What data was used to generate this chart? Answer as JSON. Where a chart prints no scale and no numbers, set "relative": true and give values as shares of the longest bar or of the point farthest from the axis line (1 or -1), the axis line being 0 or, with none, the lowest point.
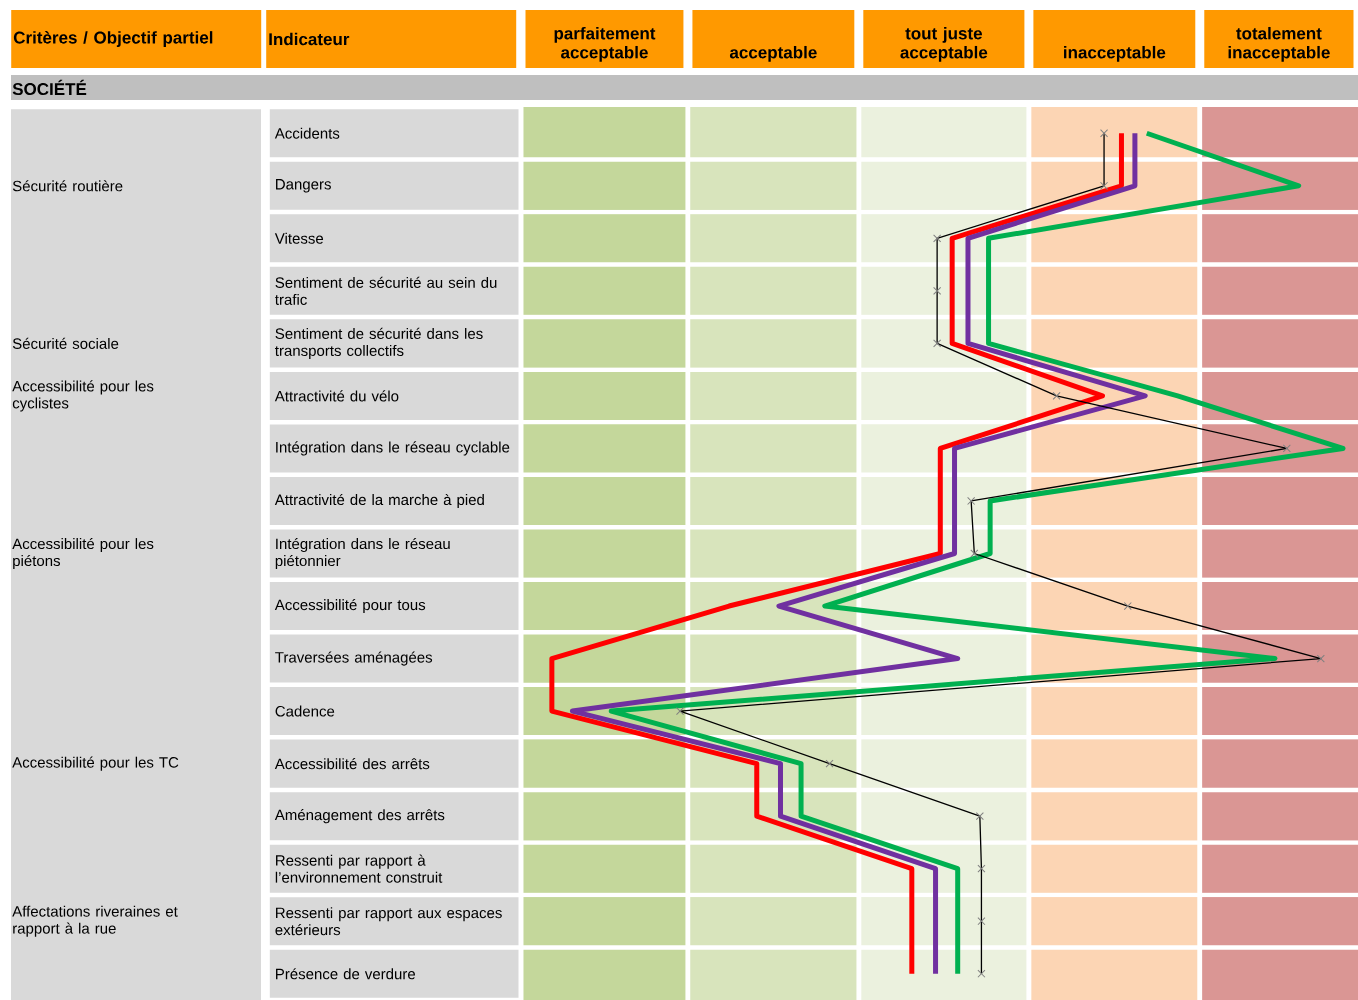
{
  "chart_data": {
    "type": "line",
    "orientation": "horizontal",
    "title": "SOCIÉTÉ",
    "annotations": [
      "Critères / Objectif partiel",
      "Indicateur"
    ],
    "categories": [
      "Accidents",
      "Dangers",
      "Vitesse",
      "Sentiment de sécurité au sein du trafic",
      "Sentiment de sécurité dans les transports collectifs",
      "Attractivité du vélo",
      "Intégration dans le réseau cyclable",
      "Attractivité de la marche à pied",
      "Intégration dans le réseau piétonnier",
      "Accessibilité pour tous",
      "Traversées aménagées",
      "Cadence",
      "Accessibilité des arrêts",
      "Aménagement des arrêts",
      "Ressenti par rapport à l’environnement construit",
      "Ressenti par rapport aux espaces extérieurs",
      "Présence de verdure"
    ],
    "y2_categories": [
      null,
      "Sécurité routière",
      null,
      null,
      "Sécurité sociale",
      "Accessibilité pour les cyclistes",
      null,
      null,
      "Accessibilité pour les piétons",
      null,
      null,
      null,
      "Accessibilité pour les TC",
      null,
      null,
      "Affectations riveraines et rapport à la rue",
      null
    ],
    "relative": true,
    "bands": [
      {
        "axis": "x",
        "from": -0.039,
        "to": 0.172,
        "label": "parfaitement acceptable",
        "color": "#c4d79b"
      },
      {
        "axis": "x",
        "from": 0.172,
        "to": 0.388,
        "label": "acceptable",
        "color": "#d8e4bc"
      },
      {
        "axis": "x",
        "from": 0.388,
        "to": 0.603,
        "label": "tout juste acceptable",
        "color": "#ebf1de"
      },
      {
        "axis": "x",
        "from": 0.603,
        "to": 0.819,
        "label": "inacceptable",
        "color": "#fcd5b4"
      },
      {
        "axis": "x",
        "from": 0.819,
        "to": 1.019,
        "label": "totalement inacceptable",
        "color": "#da9694"
      }
    ],
    "series": [
      {
        "color": "#ff0000",
        "values": [
          0.72,
          0.72,
          0.506,
          0.506,
          0.506,
          0.696,
          0.491,
          0.491,
          0.491,
          0.224,
          0,
          0,
          0.259,
          0.259,
          0.455,
          0.455,
          0.455
        ]
      },
      {
        "color": "#7030a0",
        "values": [
          0.737,
          0.737,
          0.526,
          0.526,
          0.526,
          0.75,
          0.509,
          0.509,
          0.509,
          0.287,
          0.513,
          0.026,
          0.289,
          0.289,
          0.485,
          0.485,
          0.485
        ]
      },
      {
        "color": "#00b050",
        "values": [
          0.752,
          0.944,
          0.552,
          0.552,
          0.552,
          0.791,
          1.0,
          0.554,
          0.554,
          0.345,
          0.914,
          0.075,
          0.315,
          0.315,
          0.513,
          0.513,
          0.513
        ]
      },
      {
        "color": "#000000",
        "marker": "cross",
        "values": [
          0.698,
          0.698,
          0.487,
          0.487,
          0.487,
          0.638,
          0.929,
          0.53,
          0.534,
          0.728,
          0.972,
          0.162,
          0.351,
          0.541,
          0.543,
          0.543,
          0.543
        ]
      }
    ]
  }
}
